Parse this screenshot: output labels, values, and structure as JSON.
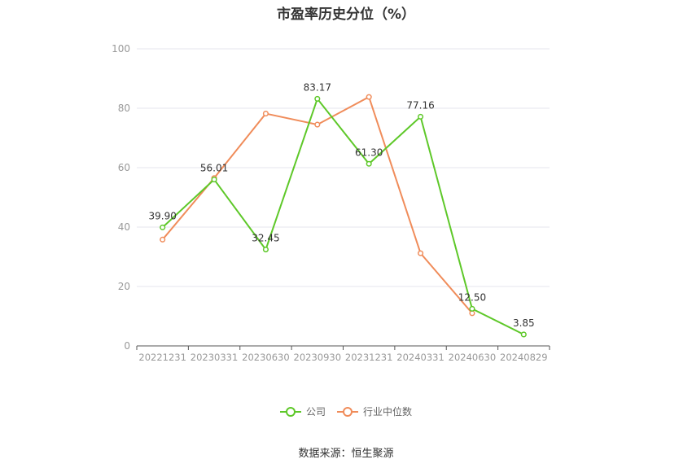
{
  "chart_data": {
    "type": "line",
    "title": "市盈率历史分位（%）",
    "categories": [
      "20221231",
      "20230331",
      "20230630",
      "20230930",
      "20231231",
      "20240331",
      "20240630",
      "20240829"
    ],
    "yticks": [
      "0",
      "20",
      "40",
      "60",
      "80",
      "100"
    ],
    "ylim": [
      0,
      100
    ],
    "grid": true,
    "legend_position": "bottom",
    "series": [
      {
        "name": "公司",
        "color": "#5ec829",
        "values": [
          39.9,
          56.01,
          32.45,
          83.17,
          61.3,
          77.16,
          12.5,
          3.85
        ],
        "labels": [
          "39.90",
          "56.01",
          "32.45",
          "83.17",
          "61.30",
          "77.16",
          "12.50",
          "3.85"
        ]
      },
      {
        "name": "行业中位数",
        "color": "#f08c5a",
        "values": [
          35.8,
          56.5,
          78.2,
          74.5,
          83.8,
          31.2,
          null,
          null
        ],
        "last_x_value": 11.0
      }
    ]
  },
  "source": "数据来源：恒生聚源"
}
